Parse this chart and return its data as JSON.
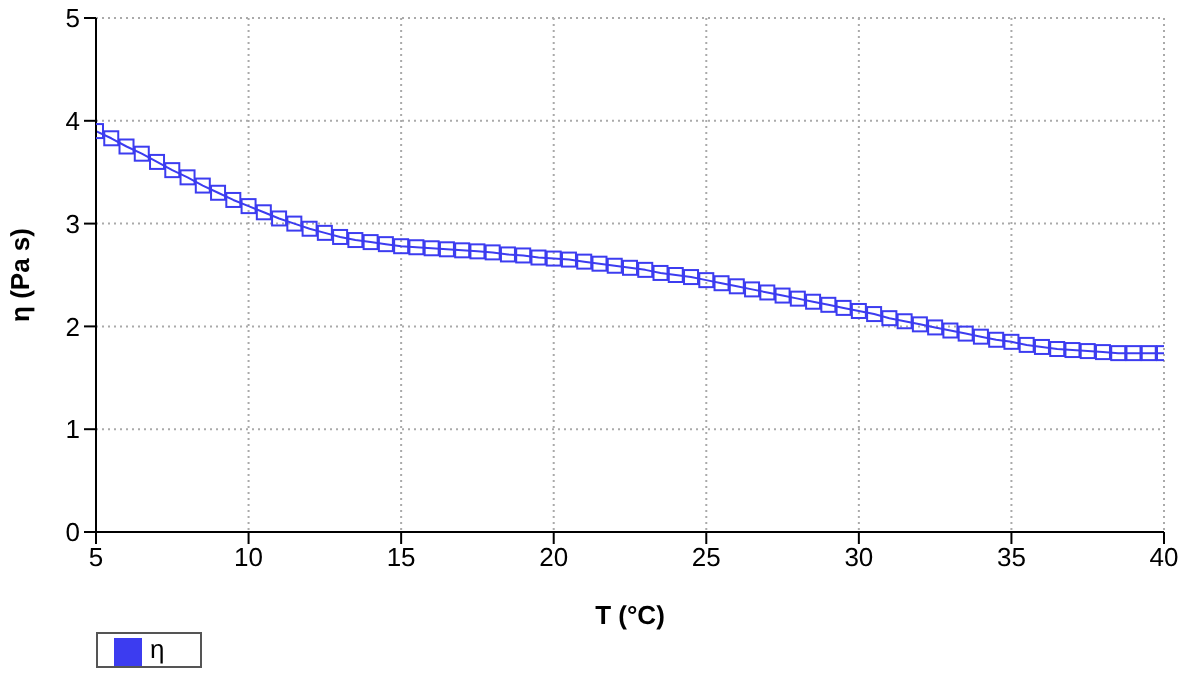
{
  "chart_data": {
    "type": "line",
    "xlabel": "T (°C)",
    "ylabel": "η (Pa s)",
    "x": [
      5,
      5.5,
      6,
      6.5,
      7,
      7.5,
      8,
      8.5,
      9,
      9.5,
      10,
      10.5,
      11,
      11.5,
      12,
      12.5,
      13,
      13.5,
      14,
      14.5,
      15,
      15.5,
      16,
      16.5,
      17,
      17.5,
      18,
      18.5,
      19,
      19.5,
      20,
      20.5,
      21,
      21.5,
      22,
      22.5,
      23,
      23.5,
      24,
      24.5,
      25,
      25.5,
      26,
      26.5,
      27,
      27.5,
      28,
      28.5,
      29,
      29.5,
      30,
      30.5,
      31,
      31.5,
      32,
      32.5,
      33,
      33.5,
      34,
      34.5,
      35,
      35.5,
      36,
      36.5,
      37,
      37.5,
      38,
      38.5,
      39,
      39.5,
      40
    ],
    "series": [
      {
        "name": "η",
        "color": "#3c3cf0",
        "values": [
          3.9,
          3.83,
          3.75,
          3.68,
          3.6,
          3.52,
          3.45,
          3.37,
          3.3,
          3.23,
          3.17,
          3.11,
          3.05,
          3,
          2.95,
          2.91,
          2.87,
          2.84,
          2.82,
          2.8,
          2.78,
          2.77,
          2.76,
          2.75,
          2.74,
          2.73,
          2.72,
          2.7,
          2.69,
          2.67,
          2.66,
          2.65,
          2.63,
          2.61,
          2.59,
          2.57,
          2.55,
          2.52,
          2.5,
          2.48,
          2.45,
          2.42,
          2.39,
          2.36,
          2.33,
          2.3,
          2.27,
          2.24,
          2.21,
          2.18,
          2.15,
          2.12,
          2.08,
          2.05,
          2.02,
          1.99,
          1.96,
          1.93,
          1.9,
          1.87,
          1.85,
          1.82,
          1.8,
          1.78,
          1.77,
          1.76,
          1.75,
          1.74,
          1.74,
          1.74,
          1.74
        ]
      }
    ],
    "xlim": [
      5,
      40
    ],
    "xticks": [
      5,
      10,
      15,
      20,
      25,
      30,
      35,
      40
    ],
    "ylim": [
      0,
      5
    ],
    "yticks": [
      0,
      1,
      2,
      3,
      4,
      5
    ],
    "grid": true,
    "legend": "bottom left",
    "marker": "square",
    "line_style": "solid"
  }
}
